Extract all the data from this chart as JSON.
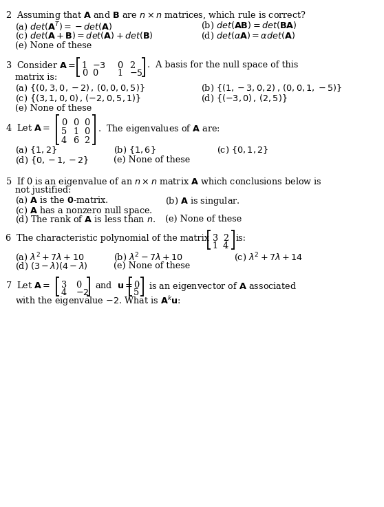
{
  "bg_color": "#ffffff",
  "figsize": [
    5.58,
    7.37
  ],
  "dpi": 100,
  "problems": {
    "p2": {
      "q": "2  Assuming that $\\mathbf{A}$ and $\\mathbf{B}$ are $n \\times n$ matrices, which rule is correct?",
      "a": "(a) $det(\\mathbf{A}^T) = -det(\\mathbf{A})$",
      "b": "(b) $det(\\mathbf{AB}) = det(\\mathbf{BA})$",
      "c": "(c) $det(\\mathbf{A} + \\mathbf{B}) = det(\\mathbf{A})+det(\\mathbf{B})$",
      "d": "(d) $det(\\alpha\\mathbf{A}) = \\alpha det(\\mathbf{A})$",
      "e": "(e) None of these"
    }
  }
}
